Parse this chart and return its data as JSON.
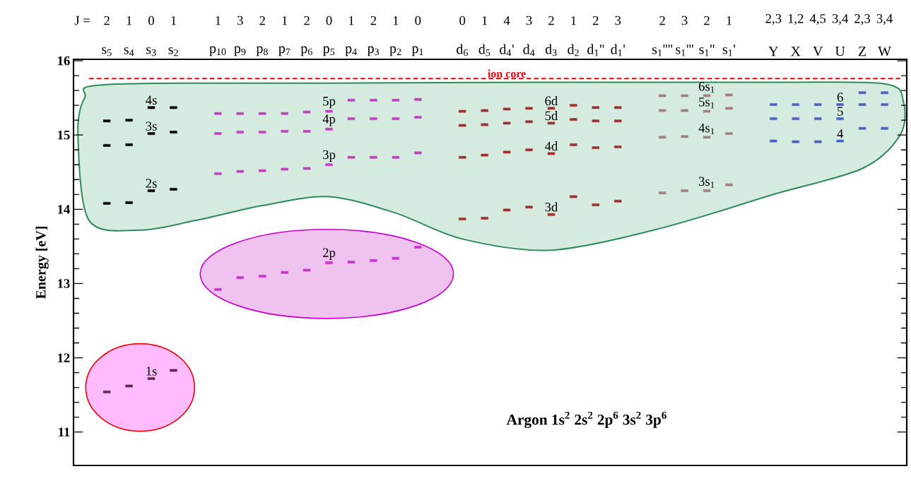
{
  "chart_data": {
    "type": "scatter",
    "ylabel": "Energy [eV]",
    "categories": [
      "s$_{5}$",
      "s$_{4}$",
      "s$_{3}$",
      "s$_{2}$",
      null,
      "p$_{10}$",
      "p$_{9}$",
      "p$_{8}$",
      "p$_{7}$",
      "p$_{6}$",
      "p$_{5}$",
      "p$_{4}$",
      "p$_{3}$",
      "p$_{2}$",
      "p$_{1}$",
      null,
      "d$_{6}$",
      "d$_{5}$",
      "d$_{4}$'",
      "d$_{4}$",
      "d$_{3}$",
      "d$_{2}$",
      "d$_{1}$''",
      "d$_{1}$'",
      null,
      "s$_{1}$''''",
      "s$_{1}$'''",
      "s$_{1}$''",
      "s$_{1}$'",
      null,
      "Y",
      "X",
      "V",
      "U",
      "Z",
      "W"
    ],
    "ylim": [
      10.55,
      16.02
    ],
    "yticks": [
      11,
      12,
      13,
      14,
      15,
      16
    ],
    "series": [
      {
        "name": "1s",
        "color": "#5a2a50",
        "values": [
          11.54,
          11.62,
          11.72,
          11.83,
          null,
          null,
          null,
          null,
          null,
          null,
          null,
          null,
          null,
          null,
          null,
          null,
          null,
          null,
          null,
          null,
          null,
          null,
          null,
          null,
          null,
          null,
          null,
          null,
          null,
          null,
          null,
          null,
          null,
          null,
          null,
          null
        ]
      },
      {
        "name": "2s",
        "color": "#000000",
        "values": [
          14.08,
          14.09,
          14.25,
          14.27,
          null,
          null,
          null,
          null,
          null,
          null,
          null,
          null,
          null,
          null,
          null,
          null,
          null,
          null,
          null,
          null,
          null,
          null,
          null,
          null,
          null,
          null,
          null,
          null,
          null,
          null,
          null,
          null,
          null,
          null,
          null,
          null
        ]
      },
      {
        "name": "3s",
        "color": "#000000",
        "values": [
          14.86,
          14.87,
          15.02,
          15.04,
          null,
          null,
          null,
          null,
          null,
          null,
          null,
          null,
          null,
          null,
          null,
          null,
          null,
          null,
          null,
          null,
          null,
          null,
          null,
          null,
          null,
          null,
          null,
          null,
          null,
          null,
          null,
          null,
          null,
          null,
          null,
          null
        ]
      },
      {
        "name": "4s",
        "color": "#000000",
        "values": [
          15.19,
          15.2,
          15.37,
          15.37,
          null,
          null,
          null,
          null,
          null,
          null,
          null,
          null,
          null,
          null,
          null,
          null,
          null,
          null,
          null,
          null,
          null,
          null,
          null,
          null,
          null,
          null,
          null,
          null,
          null,
          null,
          null,
          null,
          null,
          null,
          null,
          null
        ]
      },
      {
        "name": "2p",
        "color": "#cc33cc",
        "values": [
          null,
          null,
          null,
          null,
          null,
          12.92,
          13.08,
          13.1,
          13.15,
          13.18,
          13.28,
          13.29,
          13.31,
          13.34,
          13.49,
          null,
          null,
          null,
          null,
          null,
          null,
          null,
          null,
          null,
          null,
          null,
          null,
          null,
          null,
          null,
          null,
          null,
          null,
          null,
          null,
          null
        ]
      },
      {
        "name": "3p",
        "color": "#c040c0",
        "values": [
          null,
          null,
          null,
          null,
          null,
          14.48,
          14.51,
          14.52,
          14.54,
          14.55,
          14.6,
          14.7,
          14.7,
          14.7,
          14.76,
          null,
          null,
          null,
          null,
          null,
          null,
          null,
          null,
          null,
          null,
          null,
          null,
          null,
          null,
          null,
          null,
          null,
          null,
          null,
          null,
          null
        ]
      },
      {
        "name": "4p",
        "color": "#c040c0",
        "values": [
          null,
          null,
          null,
          null,
          null,
          15.02,
          15.04,
          15.04,
          15.05,
          15.05,
          15.08,
          15.22,
          15.22,
          15.22,
          15.24,
          null,
          null,
          null,
          null,
          null,
          null,
          null,
          null,
          null,
          null,
          null,
          null,
          null,
          null,
          null,
          null,
          null,
          null,
          null,
          null,
          null
        ]
      },
      {
        "name": "5p",
        "color": "#c040c0",
        "values": [
          null,
          null,
          null,
          null,
          null,
          15.29,
          15.29,
          15.29,
          15.29,
          15.31,
          15.32,
          15.47,
          15.47,
          15.47,
          15.48,
          null,
          null,
          null,
          null,
          null,
          null,
          null,
          null,
          null,
          null,
          null,
          null,
          null,
          null,
          null,
          null,
          null,
          null,
          null,
          null,
          null
        ]
      },
      {
        "name": "3d",
        "color": "#a03030",
        "values": [
          null,
          null,
          null,
          null,
          null,
          null,
          null,
          null,
          null,
          null,
          null,
          null,
          null,
          null,
          null,
          null,
          13.87,
          13.88,
          13.99,
          14.03,
          13.93,
          14.17,
          14.06,
          14.11,
          null,
          null,
          null,
          null,
          null,
          null,
          null,
          null,
          null,
          null,
          null,
          null
        ]
      },
      {
        "name": "4d",
        "color": "#a03030",
        "values": [
          null,
          null,
          null,
          null,
          null,
          null,
          null,
          null,
          null,
          null,
          null,
          null,
          null,
          null,
          null,
          null,
          14.7,
          14.73,
          14.77,
          14.8,
          14.75,
          14.87,
          14.83,
          14.84,
          null,
          null,
          null,
          null,
          null,
          null,
          null,
          null,
          null,
          null,
          null,
          null
        ]
      },
      {
        "name": "5d",
        "color": "#a03030",
        "values": [
          null,
          null,
          null,
          null,
          null,
          null,
          null,
          null,
          null,
          null,
          null,
          null,
          null,
          null,
          null,
          null,
          15.13,
          15.14,
          15.16,
          15.18,
          15.16,
          15.21,
          15.19,
          15.19,
          null,
          null,
          null,
          null,
          null,
          null,
          null,
          null,
          null,
          null,
          null,
          null
        ]
      },
      {
        "name": "6d",
        "color": "#a03030",
        "values": [
          null,
          null,
          null,
          null,
          null,
          null,
          null,
          null,
          null,
          null,
          null,
          null,
          null,
          null,
          null,
          null,
          15.32,
          15.33,
          15.35,
          15.36,
          15.36,
          15.4,
          15.37,
          15.37,
          null,
          null,
          null,
          null,
          null,
          null,
          null,
          null,
          null,
          null,
          null,
          null
        ]
      },
      {
        "name": "3s$_{1}$",
        "color": "#a08080",
        "values": [
          null,
          null,
          null,
          null,
          null,
          null,
          null,
          null,
          null,
          null,
          null,
          null,
          null,
          null,
          null,
          null,
          null,
          null,
          null,
          null,
          null,
          null,
          null,
          null,
          null,
          14.22,
          14.25,
          14.25,
          14.33,
          null,
          null,
          null,
          null,
          null,
          null,
          null
        ]
      },
      {
        "name": "4s$_{1}$",
        "color": "#a08080",
        "values": [
          null,
          null,
          null,
          null,
          null,
          null,
          null,
          null,
          null,
          null,
          null,
          null,
          null,
          null,
          null,
          null,
          null,
          null,
          null,
          null,
          null,
          null,
          null,
          null,
          null,
          14.97,
          14.98,
          14.97,
          15.02,
          null,
          null,
          null,
          null,
          null,
          null,
          null
        ]
      },
      {
        "name": "5s$_{1}$",
        "color": "#a08080",
        "values": [
          null,
          null,
          null,
          null,
          null,
          null,
          null,
          null,
          null,
          null,
          null,
          null,
          null,
          null,
          null,
          null,
          null,
          null,
          null,
          null,
          null,
          null,
          null,
          null,
          null,
          15.33,
          15.33,
          15.32,
          15.36,
          null,
          null,
          null,
          null,
          null,
          null,
          null
        ]
      },
      {
        "name": "6s$_{1}$",
        "color": "#a08080",
        "values": [
          null,
          null,
          null,
          null,
          null,
          null,
          null,
          null,
          null,
          null,
          null,
          null,
          null,
          null,
          null,
          null,
          null,
          null,
          null,
          null,
          null,
          null,
          null,
          null,
          null,
          15.53,
          15.53,
          15.53,
          15.54,
          null,
          null,
          null,
          null,
          null,
          null,
          null
        ]
      },
      {
        "name": "4",
        "color": "#5060c0",
        "values": [
          null,
          null,
          null,
          null,
          null,
          null,
          null,
          null,
          null,
          null,
          null,
          null,
          null,
          null,
          null,
          null,
          null,
          null,
          null,
          null,
          null,
          null,
          null,
          null,
          null,
          null,
          null,
          null,
          null,
          null,
          14.92,
          14.91,
          14.91,
          14.92,
          15.09,
          15.09
        ]
      },
      {
        "name": "5",
        "color": "#5060c0",
        "values": [
          null,
          null,
          null,
          null,
          null,
          null,
          null,
          null,
          null,
          null,
          null,
          null,
          null,
          null,
          null,
          null,
          null,
          null,
          null,
          null,
          null,
          null,
          null,
          null,
          null,
          null,
          null,
          null,
          null,
          null,
          15.22,
          15.22,
          15.22,
          15.22,
          15.41,
          15.41
        ]
      },
      {
        "name": "6",
        "color": "#5060c0",
        "values": [
          null,
          null,
          null,
          null,
          null,
          null,
          null,
          null,
          null,
          null,
          null,
          null,
          null,
          null,
          null,
          null,
          null,
          null,
          null,
          null,
          null,
          null,
          null,
          null,
          null,
          null,
          null,
          null,
          null,
          null,
          15.41,
          15.41,
          15.41,
          15.41,
          15.57,
          15.57
        ]
      }
    ],
    "ref_lines": [
      {
        "axis": "y",
        "value": 15.76,
        "label": "ion core",
        "color": "#ff0000",
        "line_style": "dashed"
      }
    ],
    "annotations": [
      "J =",
      "2",
      "1",
      "0",
      "1",
      "1",
      "3",
      "2",
      "1",
      "2",
      "0",
      "1",
      "2",
      "1",
      "0",
      "0",
      "1",
      "4",
      "3",
      "2",
      "1",
      "2",
      "3",
      "2",
      "3",
      "2",
      "1",
      "2,3",
      "1,2",
      "4,5",
      "3,4",
      "2,3",
      "3,4",
      "Argon  1s$^{2}$ 2s$^{2}$ 2p$^{6}$ 3s$^{2}$ 3p$^{6}$"
    ]
  }
}
